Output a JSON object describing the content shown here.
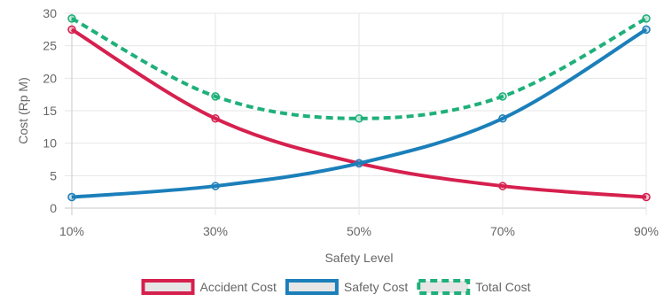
{
  "chart_data": {
    "type": "line",
    "title": "",
    "xlabel": "Safety Level",
    "ylabel": "Cost (Rp M)",
    "categories": [
      "10%",
      "30%",
      "50%",
      "70%",
      "90%"
    ],
    "ylim": [
      0,
      30
    ],
    "yticks": [
      0,
      5,
      10,
      15,
      20,
      25,
      30
    ],
    "grid": true,
    "legend_position": "bottom",
    "series": [
      {
        "name": "Accident Cost",
        "values": [
          27.5,
          13.8,
          6.9,
          3.4,
          1.7
        ],
        "color": "#d6204e",
        "dashed": false
      },
      {
        "name": "Safety Cost",
        "values": [
          1.7,
          3.4,
          6.9,
          13.8,
          27.5
        ],
        "color": "#1b7fba",
        "dashed": false
      },
      {
        "name": "Total Cost",
        "values": [
          29.2,
          17.2,
          13.8,
          17.2,
          29.2
        ],
        "color": "#1fb07a",
        "dashed": true
      }
    ]
  }
}
